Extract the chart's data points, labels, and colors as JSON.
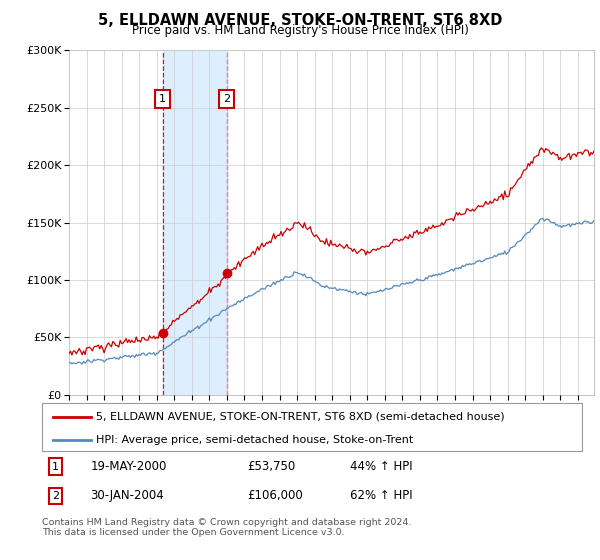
{
  "title": "5, ELLDAWN AVENUE, STOKE-ON-TRENT, ST6 8XD",
  "subtitle": "Price paid vs. HM Land Registry's House Price Index (HPI)",
  "hpi_label": "HPI: Average price, semi-detached house, Stoke-on-Trent",
  "property_label": "5, ELLDAWN AVENUE, STOKE-ON-TRENT, ST6 8XD (semi-detached house)",
  "sale1_date": "19-MAY-2000",
  "sale1_price": "£53,750",
  "sale1_hpi": "44% ↑ HPI",
  "sale2_date": "30-JAN-2004",
  "sale2_price": "£106,000",
  "sale2_hpi": "62% ↑ HPI",
  "footer": "Contains HM Land Registry data © Crown copyright and database right 2024.\nThis data is licensed under the Open Government Licence v3.0.",
  "hpi_color": "#5588bb",
  "property_color": "#cc0000",
  "sale_marker_color": "#cc0000",
  "shaded_region_color": "#ddeeff",
  "grid_color": "#cccccc",
  "background_color": "#ffffff",
  "ylim": [
    0,
    300000
  ],
  "yticks": [
    0,
    50000,
    100000,
    150000,
    200000,
    250000,
    300000
  ],
  "sale1_year": 2000,
  "sale1_month": 5,
  "sale1_value": 53750,
  "sale2_year": 2004,
  "sale2_month": 1,
  "sale2_value": 106000
}
